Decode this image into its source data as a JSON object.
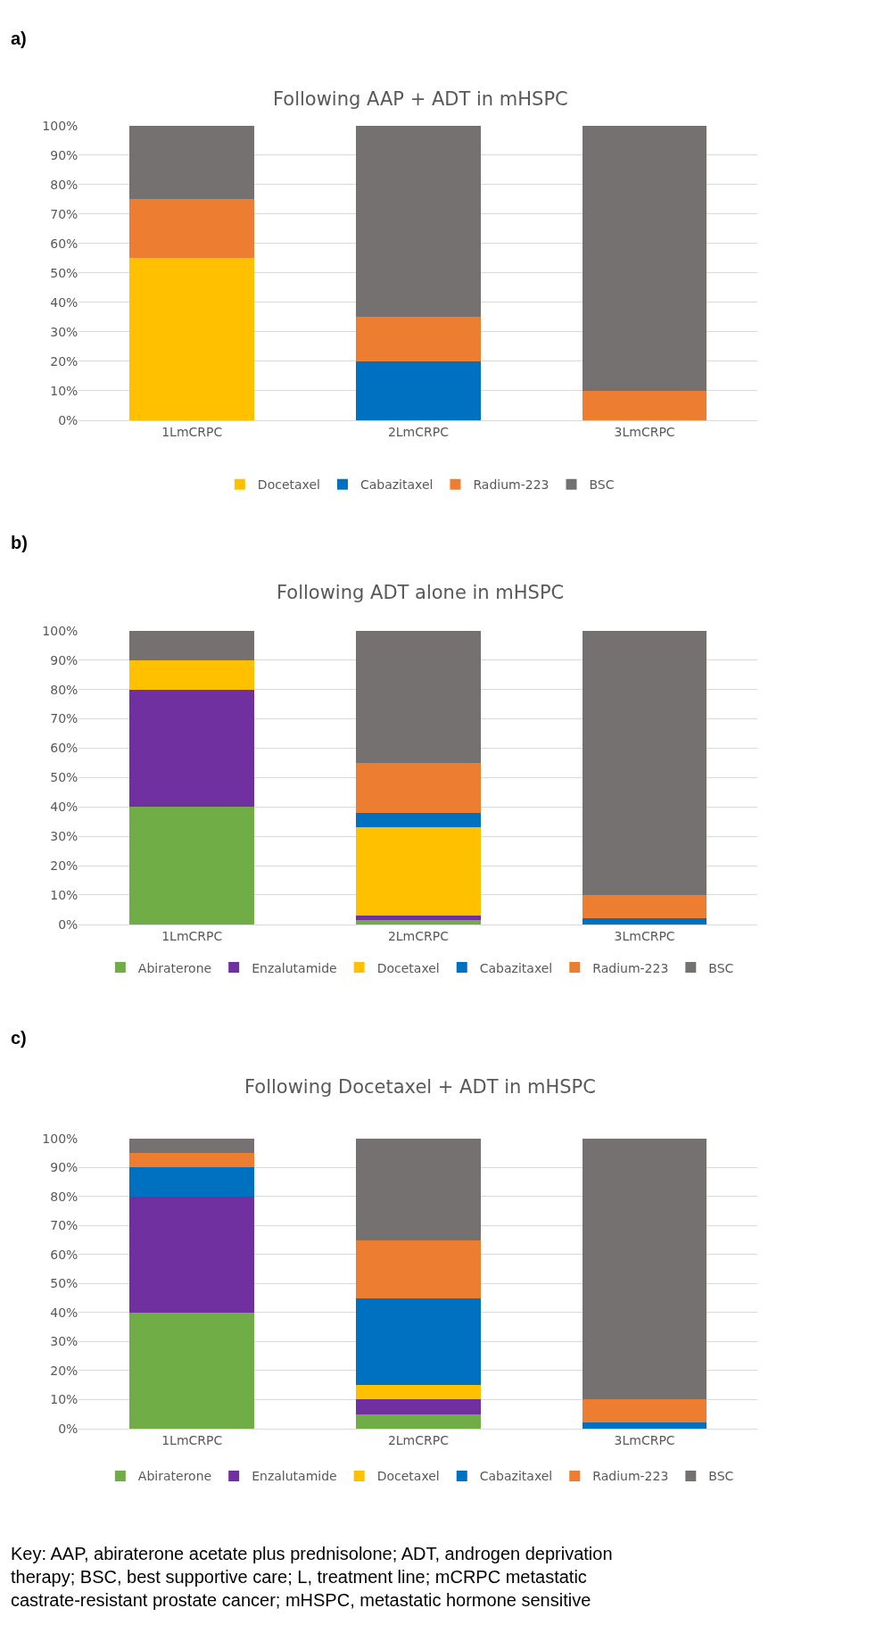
{
  "chart_data": [
    {
      "type": "bar",
      "stacked": true,
      "title": "Following AAP + ADT in mHSPC",
      "categories": [
        "1LmCRPC",
        "2LmCRPC",
        "3LmCRPC"
      ],
      "ylim": [
        0,
        100
      ],
      "yticks": [
        {
          "value": 0,
          "label": "0%"
        },
        {
          "value": 10,
          "label": "10%"
        },
        {
          "value": 20,
          "label": "20%"
        },
        {
          "value": 30,
          "label": "30%"
        },
        {
          "value": 40,
          "label": "40%"
        },
        {
          "value": 50,
          "label": "50%"
        },
        {
          "value": 60,
          "label": "60%"
        },
        {
          "value": 70,
          "label": "70%"
        },
        {
          "value": 80,
          "label": "80%"
        },
        {
          "value": 90,
          "label": "90%"
        },
        {
          "value": 100,
          "label": "100%"
        }
      ],
      "grid": "y",
      "legend": "bottom",
      "annotations": [
        "a)"
      ],
      "series": [
        {
          "name": "Docetaxel",
          "color": "#ffc000",
          "values": [
            55,
            0,
            0
          ]
        },
        {
          "name": "Cabazitaxel",
          "color": "#0070c0",
          "values": [
            0,
            20,
            0
          ]
        },
        {
          "name": "Radium-223",
          "color": "#ed7d31",
          "values": [
            20,
            15,
            10
          ]
        },
        {
          "name": "BSC",
          "color": "#767171",
          "values": [
            25,
            65,
            90
          ]
        }
      ]
    },
    {
      "type": "bar",
      "stacked": true,
      "title": "Following ADT alone in mHSPC",
      "categories": [
        "1LmCRPC",
        "2LmCRPC",
        "3LmCRPC"
      ],
      "ylim": [
        0,
        100
      ],
      "yticks": [
        {
          "value": 0,
          "label": "0%"
        },
        {
          "value": 10,
          "label": "10%"
        },
        {
          "value": 20,
          "label": "20%"
        },
        {
          "value": 30,
          "label": "30%"
        },
        {
          "value": 40,
          "label": "40%"
        },
        {
          "value": 50,
          "label": "50%"
        },
        {
          "value": 60,
          "label": "60%"
        },
        {
          "value": 70,
          "label": "70%"
        },
        {
          "value": 80,
          "label": "80%"
        },
        {
          "value": 90,
          "label": "90%"
        },
        {
          "value": 100,
          "label": "100%"
        }
      ],
      "grid": "y",
      "legend": "bottom",
      "annotations": [
        "b)"
      ],
      "series": [
        {
          "name": "Abiraterone",
          "color": "#70ad47",
          "values": [
            40,
            1.5,
            0
          ]
        },
        {
          "name": "Enzalutamide",
          "color": "#7030a0",
          "values": [
            40,
            1.5,
            0
          ]
        },
        {
          "name": "Docetaxel",
          "color": "#ffc000",
          "values": [
            10,
            30,
            0
          ]
        },
        {
          "name": "Cabazitaxel",
          "color": "#0070c0",
          "values": [
            0,
            5,
            2
          ]
        },
        {
          "name": "Radium-223",
          "color": "#ed7d31",
          "values": [
            0,
            17,
            8
          ]
        },
        {
          "name": "BSC",
          "color": "#767171",
          "values": [
            10,
            45,
            90
          ]
        }
      ]
    },
    {
      "type": "bar",
      "stacked": true,
      "title": "Following Docetaxel + ADT in mHSPC",
      "categories": [
        "1LmCRPC",
        "2LmCRPC",
        "3LmCRPC"
      ],
      "ylim": [
        0,
        100
      ],
      "yticks": [
        {
          "value": 0,
          "label": "0%"
        },
        {
          "value": 10,
          "label": "10%"
        },
        {
          "value": 20,
          "label": "20%"
        },
        {
          "value": 30,
          "label": "30%"
        },
        {
          "value": 40,
          "label": "40%"
        },
        {
          "value": 50,
          "label": "50%"
        },
        {
          "value": 60,
          "label": "60%"
        },
        {
          "value": 70,
          "label": "70%"
        },
        {
          "value": 80,
          "label": "80%"
        },
        {
          "value": 90,
          "label": "90%"
        },
        {
          "value": 100,
          "label": "100%"
        }
      ],
      "grid": "y",
      "legend": "bottom",
      "annotations": [
        "c)",
        "Key: AAP, abiraterone acetate plus prednisolone; ADT, androgen deprivation therapy; BSC, best supportive care; L, treatment line; mCRPC metastatic castrate-resistant prostate cancer; mHSPC, metastatic hormone sensitive"
      ],
      "series": [
        {
          "name": "Abiraterone",
          "color": "#70ad47",
          "values": [
            40,
            5,
            0
          ]
        },
        {
          "name": "Enzalutamide",
          "color": "#7030a0",
          "values": [
            40,
            5,
            0
          ]
        },
        {
          "name": "Docetaxel",
          "color": "#ffc000",
          "values": [
            0,
            5,
            0
          ]
        },
        {
          "name": "Cabazitaxel",
          "color": "#0070c0",
          "values": [
            10,
            30,
            2
          ]
        },
        {
          "name": "Radium-223",
          "color": "#ed7d31",
          "values": [
            5,
            20,
            8
          ]
        },
        {
          "name": "BSC",
          "color": "#767171",
          "values": [
            5,
            35,
            90
          ]
        }
      ]
    }
  ]
}
